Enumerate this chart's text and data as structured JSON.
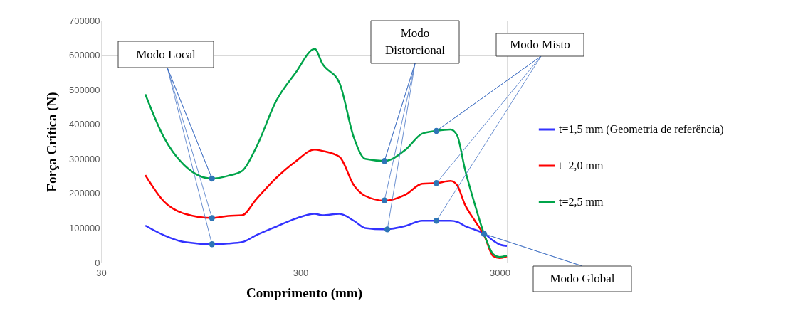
{
  "chart_data": {
    "type": "line",
    "xlabel": "Comprimento (mm)",
    "ylabel": "Força Crítica (N)",
    "log": "x",
    "grid": "y",
    "legend": "right",
    "xlim": [
      30,
      3257
    ],
    "xticks": [
      30,
      300,
      3000
    ],
    "ylim": [
      0,
      700000
    ],
    "yticks": [
      0,
      100000,
      200000,
      300000,
      400000,
      500000,
      600000,
      700000
    ],
    "x": [
      50,
      62,
      79,
      108,
      130,
      153,
      180,
      227,
      283,
      354,
      387,
      471,
      556,
      634,
      792,
      1013,
      1224,
      1443,
      1700,
      1833,
      2005,
      2250,
      2503,
      2787,
      3000,
      3257
    ],
    "series": [
      {
        "name": "t=1,5 mm (Geometria de referência)",
        "color": "#3333ff",
        "values": [
          107000,
          79000,
          59000,
          53000,
          55000,
          59000,
          79000,
          104000,
          127000,
          141000,
          137000,
          141000,
          121000,
          100000,
          96000,
          106000,
          121000,
          121000,
          121000,
          118000,
          106000,
          95000,
          84000,
          63000,
          52000,
          48000
        ]
      },
      {
        "name": "t=2,0 mm",
        "color": "#ff0000",
        "values": [
          253000,
          177000,
          141000,
          129000,
          135000,
          137000,
          183000,
          245000,
          292000,
          327000,
          323000,
          306000,
          224000,
          193000,
          179000,
          197000,
          228000,
          230000,
          236000,
          224000,
          168000,
          121000,
          79000,
          18000,
          13000,
          18000
        ]
      },
      {
        "name": "t=2,5 mm",
        "color": "#00a44a",
        "values": [
          487000,
          362000,
          280000,
          243000,
          251000,
          265000,
          333000,
          468000,
          548000,
          618000,
          575000,
          520000,
          362000,
          300000,
          294000,
          327000,
          373000,
          381000,
          385000,
          368000,
          271000,
          168000,
          83000,
          24000,
          16000,
          20000
        ]
      },
      {
        "type": "scatter",
        "color": "#2e75b6",
        "x": [
          108,
          108,
          108
        ],
        "values": [
          243000,
          129000,
          53000
        ]
      },
      {
        "type": "scatter",
        "color": "#2e75b6",
        "x": [
          792,
          792,
          819
        ],
        "values": [
          294000,
          180000,
          96000
        ]
      },
      {
        "type": "scatter",
        "color": "#2e75b6",
        "x": [
          1443,
          1443,
          1443
        ],
        "values": [
          381000,
          230000,
          121000
        ]
      },
      {
        "type": "scatter",
        "color": "#2e75b6",
        "x": [
          2503
        ],
        "values": [
          83000
        ]
      }
    ],
    "annotations": [
      {
        "text": "Modo Local",
        "x": 108,
        "y": 243000
      },
      {
        "text": "Modo\nDistorcional",
        "x": 792,
        "y": 294000
      },
      {
        "text": "Modo Misto",
        "x": 1443,
        "y": 381000
      },
      {
        "text": "Modo Global",
        "x": 2503,
        "y": 83000
      }
    ]
  }
}
